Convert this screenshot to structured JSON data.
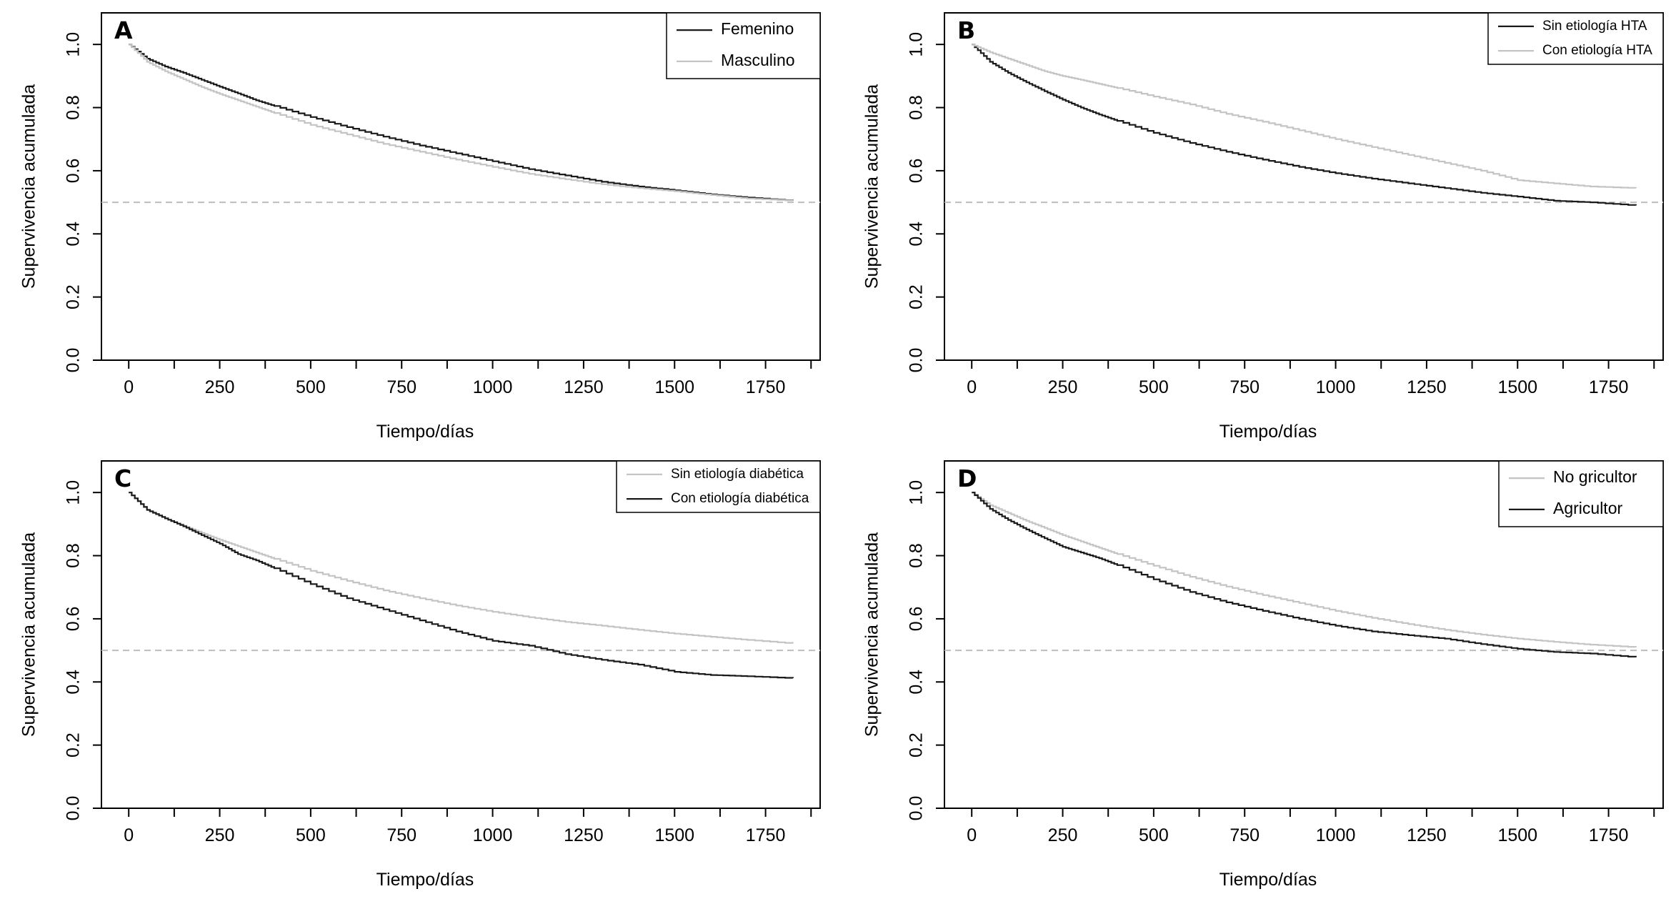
{
  "chart_data": [
    {
      "type": "line",
      "panel_label": "A",
      "xlabel": "Tiempo/días",
      "ylabel": "Supervivencia acumulada",
      "xlim": [
        -75,
        1900
      ],
      "ylim": [
        0,
        1.1
      ],
      "xticks": [
        0,
        250,
        500,
        750,
        1000,
        1250,
        1500,
        1750
      ],
      "yticks": [
        0.0,
        0.2,
        0.4,
        0.6,
        0.8,
        1.0
      ],
      "ytick_labels": [
        "0.0",
        "0.2",
        "0.4",
        "0.6",
        "0.8",
        "1.0"
      ],
      "reference_line": 0.5,
      "legend_position": "top-right",
      "series": [
        {
          "name": "Femenino",
          "color": "#1a1a1a",
          "x": [
            0,
            50,
            100,
            150,
            200,
            250,
            300,
            350,
            400,
            500,
            600,
            700,
            800,
            900,
            1000,
            1100,
            1200,
            1300,
            1400,
            1500,
            1600,
            1700,
            1825
          ],
          "y": [
            1.0,
            0.955,
            0.93,
            0.91,
            0.888,
            0.866,
            0.845,
            0.823,
            0.805,
            0.77,
            0.738,
            0.708,
            0.68,
            0.655,
            0.63,
            0.605,
            0.585,
            0.565,
            0.55,
            0.538,
            0.525,
            0.515,
            0.505
          ]
        },
        {
          "name": "Masculino",
          "color": "#c4c4c4",
          "x": [
            0,
            50,
            100,
            150,
            200,
            250,
            300,
            350,
            400,
            500,
            600,
            700,
            800,
            900,
            1000,
            1100,
            1200,
            1300,
            1400,
            1500,
            1600,
            1700,
            1825
          ],
          "y": [
            1.0,
            0.945,
            0.915,
            0.89,
            0.865,
            0.843,
            0.823,
            0.803,
            0.783,
            0.745,
            0.715,
            0.685,
            0.66,
            0.635,
            0.612,
            0.59,
            0.573,
            0.557,
            0.545,
            0.535,
            0.523,
            0.512,
            0.505
          ]
        }
      ]
    },
    {
      "type": "line",
      "panel_label": "B",
      "xlabel": "Tiempo/días",
      "ylabel": "Supervivencia acumulada",
      "xlim": [
        -75,
        1900
      ],
      "ylim": [
        0,
        1.1
      ],
      "xticks": [
        0,
        250,
        500,
        750,
        1000,
        1250,
        1500,
        1750
      ],
      "yticks": [
        0.0,
        0.2,
        0.4,
        0.6,
        0.8,
        1.0
      ],
      "ytick_labels": [
        "0.0",
        "0.2",
        "0.4",
        "0.6",
        "0.8",
        "1.0"
      ],
      "reference_line": 0.5,
      "legend_position": "top-right",
      "series": [
        {
          "name": "Sin etiología HTA",
          "color": "#1a1a1a",
          "x": [
            0,
            50,
            100,
            150,
            200,
            250,
            300,
            350,
            400,
            500,
            600,
            700,
            800,
            900,
            1000,
            1100,
            1200,
            1300,
            1400,
            1500,
            1600,
            1700,
            1825
          ],
          "y": [
            1.0,
            0.945,
            0.91,
            0.88,
            0.852,
            0.825,
            0.8,
            0.778,
            0.758,
            0.72,
            0.688,
            0.66,
            0.635,
            0.612,
            0.592,
            0.575,
            0.56,
            0.545,
            0.53,
            0.518,
            0.505,
            0.5,
            0.49
          ]
        },
        {
          "name": "Con etiología HTA",
          "color": "#c4c4c4",
          "x": [
            0,
            50,
            100,
            150,
            200,
            250,
            300,
            350,
            400,
            500,
            600,
            700,
            800,
            900,
            1000,
            1100,
            1200,
            1300,
            1400,
            1500,
            1600,
            1700,
            1825
          ],
          "y": [
            1.0,
            0.975,
            0.955,
            0.935,
            0.915,
            0.9,
            0.888,
            0.875,
            0.862,
            0.835,
            0.81,
            0.78,
            0.755,
            0.728,
            0.7,
            0.675,
            0.65,
            0.625,
            0.6,
            0.57,
            0.56,
            0.55,
            0.545
          ]
        }
      ]
    },
    {
      "type": "line",
      "panel_label": "C",
      "xlabel": "Tiempo/días",
      "ylabel": "Supervivencia acumulada",
      "xlim": [
        -75,
        1900
      ],
      "ylim": [
        0,
        1.1
      ],
      "xticks": [
        0,
        250,
        500,
        750,
        1000,
        1250,
        1500,
        1750
      ],
      "yticks": [
        0.0,
        0.2,
        0.4,
        0.6,
        0.8,
        1.0
      ],
      "ytick_labels": [
        "0.0",
        "0.2",
        "0.4",
        "0.6",
        "0.8",
        "1.0"
      ],
      "reference_line": 0.5,
      "legend_position": "top-right",
      "series": [
        {
          "name": "Sin etiología diabética",
          "color": "#c4c4c4",
          "x": [
            0,
            50,
            100,
            150,
            200,
            250,
            300,
            350,
            400,
            500,
            600,
            700,
            800,
            900,
            1000,
            1100,
            1200,
            1300,
            1400,
            1500,
            1600,
            1700,
            1825
          ],
          "y": [
            1.0,
            0.945,
            0.918,
            0.895,
            0.872,
            0.85,
            0.83,
            0.81,
            0.79,
            0.752,
            0.72,
            0.69,
            0.665,
            0.642,
            0.622,
            0.605,
            0.59,
            0.578,
            0.565,
            0.553,
            0.543,
            0.533,
            0.522
          ]
        },
        {
          "name": "Con etiología diabética",
          "color": "#1a1a1a",
          "x": [
            0,
            50,
            100,
            150,
            200,
            250,
            300,
            350,
            400,
            500,
            600,
            700,
            800,
            900,
            1000,
            1100,
            1200,
            1300,
            1400,
            1500,
            1600,
            1700,
            1825
          ],
          "y": [
            1.0,
            0.945,
            0.918,
            0.893,
            0.865,
            0.838,
            0.805,
            0.785,
            0.76,
            0.71,
            0.665,
            0.63,
            0.595,
            0.56,
            0.53,
            0.515,
            0.488,
            0.47,
            0.455,
            0.432,
            0.422,
            0.418,
            0.412
          ]
        }
      ]
    },
    {
      "type": "line",
      "panel_label": "D",
      "xlabel": "Tiempo/días",
      "ylabel": "Supervivencia acumulada",
      "xlim": [
        -75,
        1900
      ],
      "ylim": [
        0,
        1.1
      ],
      "xticks": [
        0,
        250,
        500,
        750,
        1000,
        1250,
        1500,
        1750
      ],
      "yticks": [
        0.0,
        0.2,
        0.4,
        0.6,
        0.8,
        1.0
      ],
      "ytick_labels": [
        "0.0",
        "0.2",
        "0.4",
        "0.6",
        "0.8",
        "1.0"
      ],
      "reference_line": 0.5,
      "legend_position": "top-right",
      "series": [
        {
          "name": "No gricultor",
          "color": "#c4c4c4",
          "x": [
            0,
            50,
            100,
            150,
            200,
            250,
            300,
            350,
            400,
            500,
            600,
            700,
            800,
            900,
            1000,
            1100,
            1200,
            1300,
            1400,
            1500,
            1600,
            1700,
            1825
          ],
          "y": [
            1.0,
            0.96,
            0.935,
            0.91,
            0.888,
            0.865,
            0.845,
            0.825,
            0.805,
            0.768,
            0.733,
            0.702,
            0.675,
            0.65,
            0.625,
            0.603,
            0.583,
            0.565,
            0.55,
            0.537,
            0.527,
            0.518,
            0.51
          ]
        },
        {
          "name": "Agricultor",
          "color": "#1a1a1a",
          "x": [
            0,
            50,
            100,
            150,
            200,
            250,
            300,
            350,
            400,
            500,
            600,
            700,
            800,
            900,
            1000,
            1100,
            1200,
            1300,
            1400,
            1500,
            1600,
            1700,
            1825
          ],
          "y": [
            1.0,
            0.948,
            0.913,
            0.883,
            0.855,
            0.828,
            0.81,
            0.792,
            0.77,
            0.725,
            0.685,
            0.652,
            0.625,
            0.6,
            0.578,
            0.56,
            0.548,
            0.537,
            0.52,
            0.505,
            0.495,
            0.49,
            0.478
          ]
        }
      ]
    }
  ]
}
